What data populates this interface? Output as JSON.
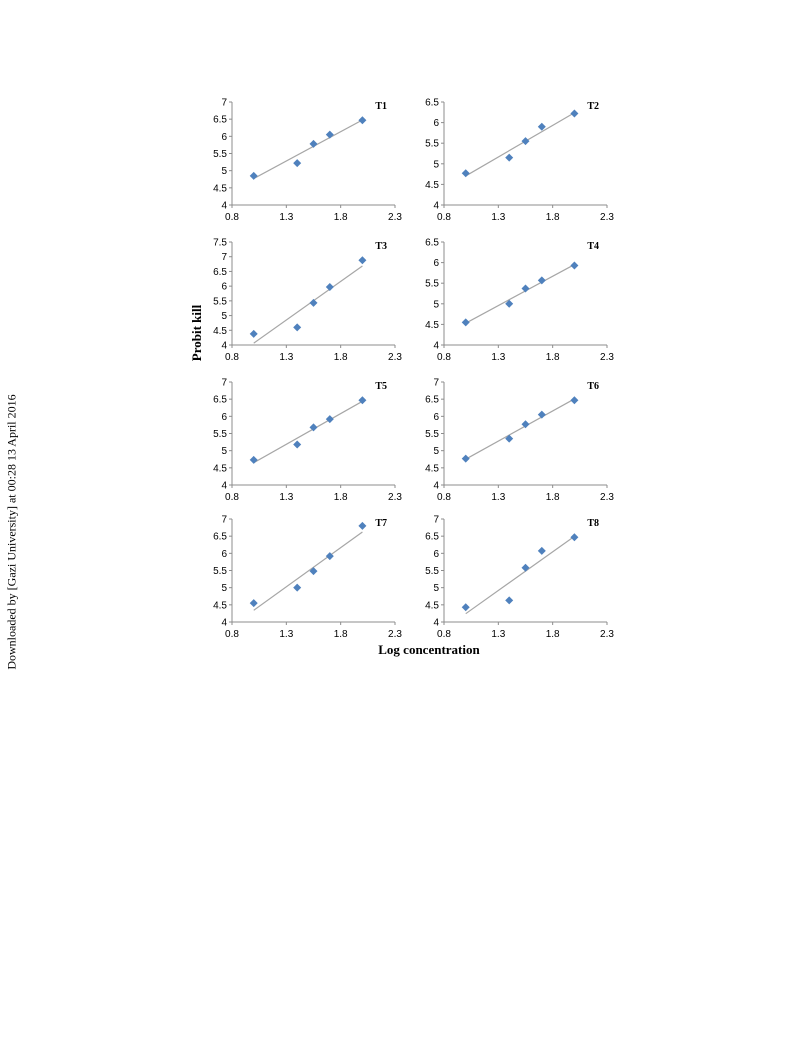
{
  "watermark": "Downloaded by [Gazi University] at 00:28 13 April 2016",
  "chart_data": {
    "type": "scatter",
    "xlabel": "Log concentration",
    "ylabel": "Probit kill",
    "trendline": true,
    "grid": false,
    "xlim": [
      0.8,
      2.3
    ],
    "xticks": [
      0.8,
      1.3,
      1.8,
      2.3
    ],
    "marker_color": "#4F81BD",
    "trendline_color": "#A6A6A6",
    "panels": [
      {
        "label": "T1",
        "ylim": [
          4,
          7
        ],
        "yticks": [
          4,
          4.5,
          5,
          5.5,
          6,
          6.5,
          7
        ],
        "x": [
          1.0,
          1.4,
          1.55,
          1.7,
          2.0
        ],
        "y": [
          4.85,
          5.22,
          5.78,
          6.05,
          6.47
        ]
      },
      {
        "label": "T2",
        "ylim": [
          4,
          6.5
        ],
        "yticks": [
          4,
          4.5,
          5,
          5.5,
          6,
          6.5
        ],
        "x": [
          1.0,
          1.4,
          1.55,
          1.7,
          2.0
        ],
        "y": [
          4.77,
          5.15,
          5.55,
          5.9,
          6.22
        ]
      },
      {
        "label": "T3",
        "ylim": [
          4,
          7.5
        ],
        "yticks": [
          4,
          4.5,
          5,
          5.5,
          6,
          6.5,
          7,
          7.5
        ],
        "x": [
          1.0,
          1.4,
          1.55,
          1.7,
          2.0
        ],
        "y": [
          4.38,
          4.6,
          5.43,
          5.97,
          6.88
        ]
      },
      {
        "label": "T4",
        "ylim": [
          4,
          6.5
        ],
        "yticks": [
          4,
          4.5,
          5,
          5.5,
          6,
          6.5
        ],
        "x": [
          1.0,
          1.4,
          1.55,
          1.7,
          2.0
        ],
        "y": [
          4.55,
          5.0,
          5.37,
          5.57,
          5.93
        ]
      },
      {
        "label": "T5",
        "ylim": [
          4,
          7
        ],
        "yticks": [
          4,
          4.5,
          5,
          5.5,
          6,
          6.5,
          7
        ],
        "x": [
          1.0,
          1.4,
          1.55,
          1.7,
          2.0
        ],
        "y": [
          4.73,
          5.18,
          5.68,
          5.92,
          6.47
        ]
      },
      {
        "label": "T6",
        "ylim": [
          4,
          7
        ],
        "yticks": [
          4,
          4.5,
          5,
          5.5,
          6,
          6.5,
          7
        ],
        "x": [
          1.0,
          1.4,
          1.55,
          1.7,
          2.0
        ],
        "y": [
          4.77,
          5.35,
          5.77,
          6.05,
          6.47
        ]
      },
      {
        "label": "T7",
        "ylim": [
          4,
          7
        ],
        "yticks": [
          4,
          4.5,
          5,
          5.5,
          6,
          6.5,
          7
        ],
        "x": [
          1.0,
          1.4,
          1.55,
          1.7,
          2.0
        ],
        "y": [
          4.55,
          5.0,
          5.48,
          5.92,
          6.8
        ]
      },
      {
        "label": "T8",
        "ylim": [
          4,
          7
        ],
        "yticks": [
          4,
          4.5,
          5,
          5.5,
          6,
          6.5,
          7
        ],
        "x": [
          1.0,
          1.4,
          1.55,
          1.7,
          2.0
        ],
        "y": [
          4.43,
          4.63,
          5.58,
          6.07,
          6.47
        ]
      }
    ]
  }
}
